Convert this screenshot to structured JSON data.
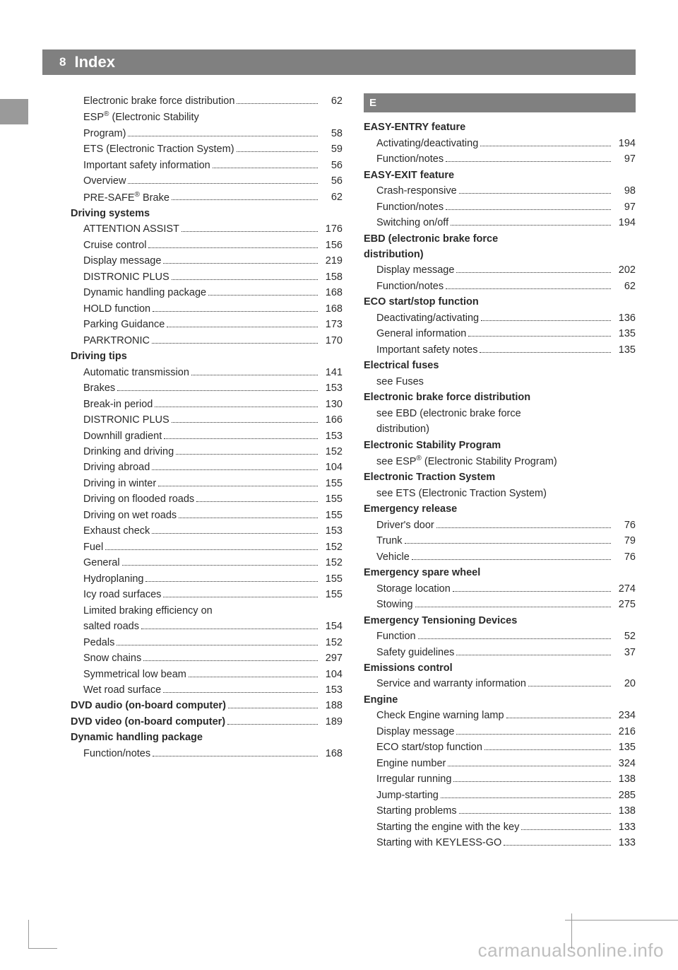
{
  "page_number": "8",
  "header_title": "Index",
  "watermark": "carmanualsonline.info",
  "left_column": [
    {
      "type": "sub",
      "label": "Electronic brake force distribution",
      "page": "62"
    },
    {
      "type": "sub-multi",
      "label1": "ESP® (Electronic Stability",
      "label2": "Program)",
      "page": "58"
    },
    {
      "type": "sub",
      "label": "ETS (Electronic Traction System)",
      "page": "59"
    },
    {
      "type": "sub",
      "label": "Important safety information",
      "page": "56"
    },
    {
      "type": "sub",
      "label": "Overview",
      "page": "56"
    },
    {
      "type": "sub",
      "label": "PRE-SAFE® Brake",
      "page": "62"
    },
    {
      "type": "heading",
      "label": "Driving systems"
    },
    {
      "type": "sub",
      "label": "ATTENTION ASSIST",
      "page": "176"
    },
    {
      "type": "sub",
      "label": "Cruise control",
      "page": "156"
    },
    {
      "type": "sub",
      "label": "Display message",
      "page": "219"
    },
    {
      "type": "sub",
      "label": "DISTRONIC PLUS",
      "page": "158"
    },
    {
      "type": "sub",
      "label": "Dynamic handling package",
      "page": "168"
    },
    {
      "type": "sub",
      "label": "HOLD function",
      "page": "168"
    },
    {
      "type": "sub",
      "label": "Parking Guidance",
      "page": "173"
    },
    {
      "type": "sub",
      "label": "PARKTRONIC",
      "page": "170"
    },
    {
      "type": "heading",
      "label": "Driving tips"
    },
    {
      "type": "sub",
      "label": "Automatic transmission",
      "page": "141"
    },
    {
      "type": "sub",
      "label": "Brakes",
      "page": "153"
    },
    {
      "type": "sub",
      "label": "Break-in period",
      "page": "130"
    },
    {
      "type": "sub",
      "label": "DISTRONIC PLUS",
      "page": "166"
    },
    {
      "type": "sub",
      "label": "Downhill gradient",
      "page": "153"
    },
    {
      "type": "sub",
      "label": "Drinking and driving",
      "page": "152"
    },
    {
      "type": "sub",
      "label": "Driving abroad",
      "page": "104"
    },
    {
      "type": "sub",
      "label": "Driving in winter",
      "page": "155"
    },
    {
      "type": "sub",
      "label": "Driving on flooded roads",
      "page": "155"
    },
    {
      "type": "sub",
      "label": "Driving on wet roads",
      "page": "155"
    },
    {
      "type": "sub",
      "label": "Exhaust check",
      "page": "153"
    },
    {
      "type": "sub",
      "label": "Fuel",
      "page": "152"
    },
    {
      "type": "sub",
      "label": "General",
      "page": "152"
    },
    {
      "type": "sub",
      "label": "Hydroplaning",
      "page": "155"
    },
    {
      "type": "sub",
      "label": "Icy road surfaces",
      "page": "155"
    },
    {
      "type": "sub-multi",
      "label1": "Limited braking efficiency on",
      "label2": "salted roads",
      "page": "154"
    },
    {
      "type": "sub",
      "label": "Pedals",
      "page": "152"
    },
    {
      "type": "sub",
      "label": "Snow chains",
      "page": "297"
    },
    {
      "type": "sub",
      "label": "Symmetrical low beam",
      "page": "104"
    },
    {
      "type": "sub",
      "label": "Wet road surface",
      "page": "153"
    },
    {
      "type": "bold",
      "label": "DVD audio (on-board computer)",
      "page": "188"
    },
    {
      "type": "bold",
      "label": "DVD video (on-board computer)",
      "page": "189"
    },
    {
      "type": "heading",
      "label": "Dynamic handling package"
    },
    {
      "type": "sub",
      "label": "Function/notes",
      "page": "168"
    }
  ],
  "right_column": [
    {
      "type": "letter",
      "label": "E"
    },
    {
      "type": "heading",
      "label": "EASY-ENTRY feature"
    },
    {
      "type": "sub",
      "label": "Activating/deactivating",
      "page": "194"
    },
    {
      "type": "sub",
      "label": "Function/notes",
      "page": "97"
    },
    {
      "type": "heading",
      "label": "EASY-EXIT feature"
    },
    {
      "type": "sub",
      "label": "Crash-responsive",
      "page": "98"
    },
    {
      "type": "sub",
      "label": "Function/notes",
      "page": "97"
    },
    {
      "type": "sub",
      "label": "Switching on/off",
      "page": "194"
    },
    {
      "type": "heading-multi",
      "label1": "EBD (electronic brake force",
      "label2": "distribution)"
    },
    {
      "type": "sub",
      "label": "Display message",
      "page": "202"
    },
    {
      "type": "sub",
      "label": "Function/notes",
      "page": "62"
    },
    {
      "type": "heading",
      "label": "ECO start/stop function"
    },
    {
      "type": "sub",
      "label": "Deactivating/activating",
      "page": "136"
    },
    {
      "type": "sub",
      "label": "General information",
      "page": "135"
    },
    {
      "type": "sub",
      "label": "Important safety notes",
      "page": "135"
    },
    {
      "type": "heading",
      "label": "Electrical fuses"
    },
    {
      "type": "ref",
      "label": "see Fuses"
    },
    {
      "type": "heading",
      "label": "Electronic brake force distribution"
    },
    {
      "type": "ref-multi",
      "label1": "see EBD (electronic brake force",
      "label2": "distribution)"
    },
    {
      "type": "heading",
      "label": "Electronic Stability Program"
    },
    {
      "type": "ref",
      "label": "see ESP® (Electronic Stability Program)"
    },
    {
      "type": "heading",
      "label": "Electronic Traction System"
    },
    {
      "type": "ref",
      "label": "see ETS (Electronic Traction System)"
    },
    {
      "type": "heading",
      "label": "Emergency release"
    },
    {
      "type": "sub",
      "label": "Driver's door",
      "page": "76"
    },
    {
      "type": "sub",
      "label": "Trunk",
      "page": "79"
    },
    {
      "type": "sub",
      "label": "Vehicle",
      "page": "76"
    },
    {
      "type": "heading",
      "label": "Emergency spare wheel"
    },
    {
      "type": "sub",
      "label": "Storage location",
      "page": "274"
    },
    {
      "type": "sub",
      "label": "Stowing",
      "page": "275"
    },
    {
      "type": "heading",
      "label": "Emergency Tensioning Devices"
    },
    {
      "type": "sub",
      "label": "Function",
      "page": "52"
    },
    {
      "type": "sub",
      "label": "Safety guidelines",
      "page": "37"
    },
    {
      "type": "heading",
      "label": "Emissions control"
    },
    {
      "type": "sub",
      "label": "Service and warranty information",
      "page": "20"
    },
    {
      "type": "heading",
      "label": "Engine"
    },
    {
      "type": "sub",
      "label": "Check Engine warning lamp",
      "page": "234"
    },
    {
      "type": "sub",
      "label": "Display message",
      "page": "216"
    },
    {
      "type": "sub",
      "label": "ECO start/stop function",
      "page": "135"
    },
    {
      "type": "sub",
      "label": "Engine number",
      "page": "324"
    },
    {
      "type": "sub",
      "label": "Irregular running",
      "page": "138"
    },
    {
      "type": "sub",
      "label": "Jump-starting",
      "page": "285"
    },
    {
      "type": "sub",
      "label": "Starting problems",
      "page": "138"
    },
    {
      "type": "sub",
      "label": "Starting the engine with the key",
      "page": "133"
    },
    {
      "type": "sub",
      "label": "Starting with KEYLESS-GO",
      "page": "133"
    }
  ]
}
